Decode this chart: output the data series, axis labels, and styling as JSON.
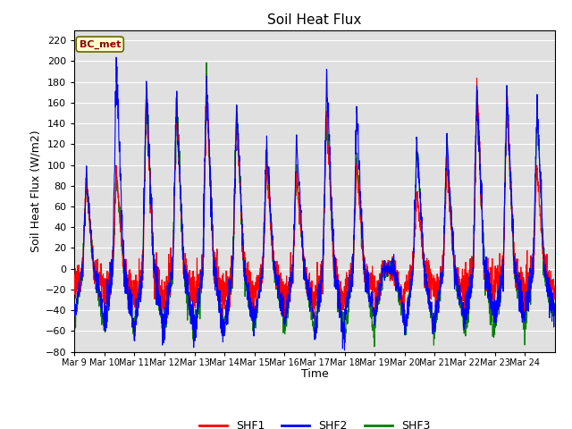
{
  "title": "Soil Heat Flux",
  "xlabel": "Time",
  "ylabel": "Soil Heat Flux (W/m2)",
  "ylim": [
    -80,
    230
  ],
  "yticks": [
    -80,
    -60,
    -40,
    -20,
    0,
    20,
    40,
    60,
    80,
    100,
    120,
    140,
    160,
    180,
    200,
    220
  ],
  "date_labels": [
    "Mar 9",
    "Mar 10",
    "Mar 11",
    "Mar 12",
    "Mar 13",
    "Mar 14",
    "Mar 15",
    "Mar 16",
    "Mar 17",
    "Mar 18",
    "Mar 19",
    "Mar 20",
    "Mar 21",
    "Mar 22",
    "Mar 23",
    "Mar 24"
  ],
  "colors": {
    "SHF1": "red",
    "SHF2": "blue",
    "SHF3": "green"
  },
  "legend_label": "BC_met",
  "legend_bg": "#ffffcc",
  "legend_edge": "#888800",
  "bg_color": "#e0e0e0",
  "linewidth": 0.8,
  "n_days": 16,
  "pts_per_day": 144
}
